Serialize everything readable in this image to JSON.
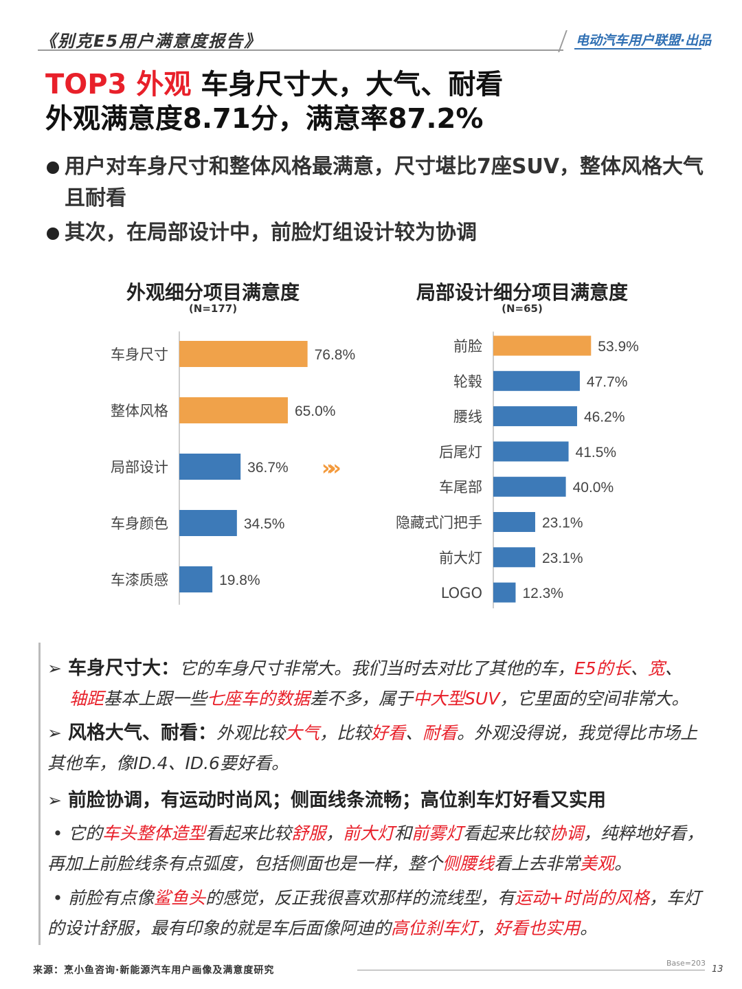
{
  "header": {
    "report_title": "《别克E5用户满意度报告》",
    "brand": "电动汽车用户联盟·出品"
  },
  "headline": {
    "line1_highlight": "TOP3 外观",
    "line1_rest": " 车身尺寸大，大气、耐看",
    "line2": "外观满意度8.71分，满意率87.2%"
  },
  "bullets": [
    "用户对车身尺寸和整体风格最满意，尺寸堪比7座SUV，整体风格大气且耐看",
    "其次，在局部设计中，前脸灯组设计较为协调"
  ],
  "colors": {
    "accent_orange": "#f0a24a",
    "bar_blue": "#3d7ab8",
    "highlight_red": "#e8202a"
  },
  "chart_data": [
    {
      "type": "bar",
      "orientation": "horizontal",
      "title": "外观细分项目满意度",
      "subtitle": "(N=177)",
      "categories": [
        "车身尺寸",
        "整体风格",
        "局部设计",
        "车身颜色",
        "车漆质感"
      ],
      "values": [
        76.8,
        65.0,
        36.7,
        34.5,
        19.8
      ],
      "value_labels": [
        "76.8%",
        "65.0%",
        "36.7%",
        "34.5%",
        "19.8%"
      ],
      "highlighted": [
        true,
        true,
        false,
        false,
        false
      ],
      "xlim": [
        0,
        100
      ]
    },
    {
      "type": "bar",
      "orientation": "horizontal",
      "title": "局部设计细分项目满意度",
      "subtitle": "(N=65)",
      "categories": [
        "前脸",
        "轮毂",
        "腰线",
        "后尾灯",
        "车尾部",
        "隐藏式门把手",
        "前大灯",
        "LOGO"
      ],
      "values": [
        53.9,
        47.7,
        46.2,
        41.5,
        40.0,
        23.1,
        23.1,
        12.3
      ],
      "value_labels": [
        "53.9%",
        "47.7%",
        "46.2%",
        "41.5%",
        "40.0%",
        "23.1%",
        "23.1%",
        "12.3%"
      ],
      "highlighted": [
        true,
        false,
        false,
        false,
        false,
        false,
        false,
        false
      ],
      "xlim": [
        0,
        100
      ]
    }
  ],
  "arrows": "»»",
  "quotes": {
    "q1_head": "车身尺寸大：",
    "q1_a": "它的车身尺寸非常大。我们当时去对比了其他的车，",
    "q1_r1": "E5的长",
    "q1_b": "、",
    "q1_r2": "宽",
    "q1_c": "、",
    "q1_r3": "轴距",
    "q1_d": "基本上跟一些",
    "q1_r4": "七座车的数据",
    "q1_e": "差不多，属于",
    "q1_r5": "中大型SUV",
    "q1_f": "，它里面的空间非常大。",
    "q2_head": "风格大气、耐看：",
    "q2_a": "外观比较",
    "q2_r1": "大气",
    "q2_b": "，比较",
    "q2_r2": "好看",
    "q2_c": "、",
    "q2_r3": "耐看",
    "q2_d": "。外观没得说，我觉得比市场上其他车，像ID.4、ID.6要好看。",
    "q3_head": "前脸协调，有运动时尚风；侧面线条流畅；高位刹车灯好看又实用",
    "q4_a": "它的",
    "q4_r1": "车头整体造型",
    "q4_b": "看起来比较",
    "q4_r2": "舒服",
    "q4_c": "，",
    "q4_r3": "前大灯",
    "q4_d": "和",
    "q4_r4": "前雾灯",
    "q4_e": "看起来比较",
    "q4_r5": "协调",
    "q4_f": "，纯粹地好看，再加上前脸线条有点弧度，包括侧面也是一样，整个",
    "q4_r6": "侧腰线",
    "q4_g": "看上去非常",
    "q4_r7": "美观",
    "q4_h": "。",
    "q5_a": "前脸有点像",
    "q5_r1": "鲨鱼头",
    "q5_b": "的感觉，反正我很喜欢那样的流线型，有",
    "q5_r2": "运动+时尚的风格",
    "q5_c": "，车灯的设计舒服，最有印象的就是车后面像阿迪的",
    "q5_r3": "高位刹车灯",
    "q5_d": "，",
    "q5_r4": "好看也实用",
    "q5_e": "。"
  },
  "footer": {
    "source": "来源：烹小鱼咨询·新能源汽车用户画像及满意度研究",
    "base": "Base=203",
    "page": "13"
  }
}
